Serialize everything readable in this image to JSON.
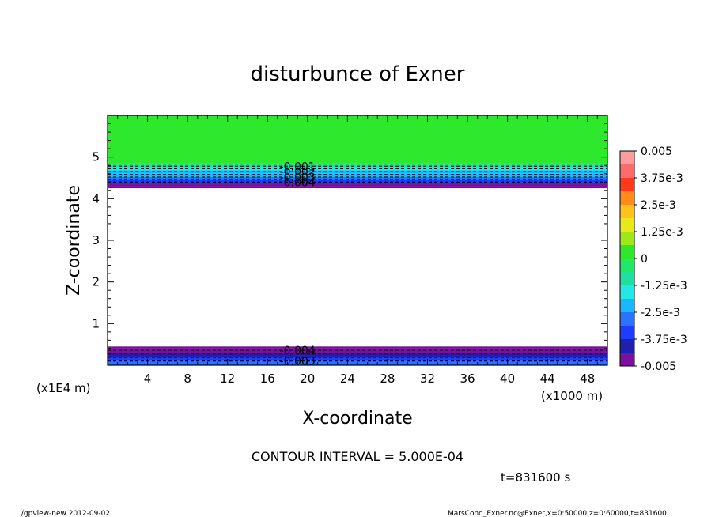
{
  "chart_data": {
    "type": "heatmap",
    "title": "disturbunce of Exner",
    "xlabel": "X-coordinate",
    "ylabel": "Z-coordinate",
    "x_unit": "(x1000 m)",
    "y_unit": "(x1E4 m)",
    "xlim": [
      0,
      50
    ],
    "ylim": [
      0,
      6
    ],
    "x_ticks": [
      4,
      8,
      12,
      16,
      20,
      24,
      28,
      32,
      36,
      40,
      44,
      48
    ],
    "y_ticks": [
      1,
      2,
      3,
      4,
      5
    ],
    "bands": [
      {
        "z": [
          4.85,
          6.0
        ],
        "value": 0.0
      },
      {
        "z": [
          4.82,
          4.85
        ],
        "value": -0.0005
      },
      {
        "z": [
          4.75,
          4.82
        ],
        "value": -0.001
      },
      {
        "z": [
          4.68,
          4.75
        ],
        "value": -0.0015
      },
      {
        "z": [
          4.6,
          4.68
        ],
        "value": -0.002
      },
      {
        "z": [
          4.52,
          4.6
        ],
        "value": -0.0025
      },
      {
        "z": [
          4.45,
          4.52
        ],
        "value": -0.003
      },
      {
        "z": [
          4.4,
          4.45
        ],
        "value": -0.0035
      },
      {
        "z": [
          4.35,
          4.4
        ],
        "value": -0.004
      },
      {
        "z": [
          4.3,
          4.35
        ],
        "value": -0.0045
      },
      {
        "z": [
          4.25,
          4.3
        ],
        "value": -0.005
      },
      {
        "z": [
          0.45,
          4.25
        ],
        "value": null
      },
      {
        "z": [
          0.4,
          0.45
        ],
        "value": -0.005
      },
      {
        "z": [
          0.3,
          0.4
        ],
        "value": -0.0045
      },
      {
        "z": [
          0.2,
          0.3
        ],
        "value": -0.004
      },
      {
        "z": [
          0.1,
          0.2
        ],
        "value": -0.0035
      },
      {
        "z": [
          0.0,
          0.1
        ],
        "value": -0.003
      }
    ],
    "contours": [
      {
        "z": 4.83,
        "value": -0.0005
      },
      {
        "z": 4.78,
        "value": -0.001
      },
      {
        "z": 4.72,
        "value": -0.0015
      },
      {
        "z": 4.65,
        "value": -0.002
      },
      {
        "z": 4.58,
        "value": -0.0025
      },
      {
        "z": 4.52,
        "value": -0.003
      },
      {
        "z": 4.46,
        "value": -0.0035
      },
      {
        "z": 4.4,
        "value": -0.004
      },
      {
        "z": 0.36,
        "value": -0.004
      },
      {
        "z": 0.27,
        "value": -0.0035
      },
      {
        "z": 0.19,
        "value": -0.003
      },
      {
        "z": 0.1,
        "value": -0.0025
      }
    ],
    "contour_labels": [
      {
        "text": "-0.001",
        "x": 19.0,
        "z": 4.78
      },
      {
        "text": "-0.002",
        "x": 19.0,
        "z": 4.65
      },
      {
        "text": "-0.003",
        "x": 19.0,
        "z": 4.52
      },
      {
        "text": "-0.004",
        "x": 19.0,
        "z": 4.4
      },
      {
        "text": "-0.004",
        "x": 19.0,
        "z": 0.36
      },
      {
        "text": "-0.003",
        "x": 19.0,
        "z": 0.1
      }
    ],
    "colorbar": {
      "vmin": -0.005,
      "vmax": 0.005,
      "colors": [
        "#7a0fa0",
        "#2020b0",
        "#1c3cff",
        "#2b72ff",
        "#1ab6ff",
        "#22e8e8",
        "#1fe0a0",
        "#22e86a",
        "#2ee82e",
        "#9ee81a",
        "#e8e81a",
        "#ffc21a",
        "#ff8c1a",
        "#ff3a1a",
        "#ff6a6a",
        "#ff9c9c"
      ],
      "labels": [
        "0.005",
        "3.75e-3",
        "2.5e-3",
        "1.25e-3",
        "0",
        "-1.25e-3",
        "-2.5e-3",
        "-3.75e-3",
        "-0.005"
      ]
    }
  },
  "contour_interval_text": "CONTOUR INTERVAL = 5.000E-04",
  "time_text": "t=831600 s",
  "footer_left": "./gpview-new  2012-09-02",
  "footer_right": "MarsCond_Exner.nc@Exner,x=0:50000,z=0:60000,t=831600"
}
